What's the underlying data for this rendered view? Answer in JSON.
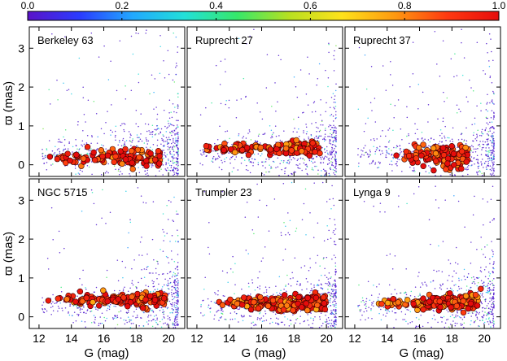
{
  "colors": {
    "colorbar_stops": [
      "#5a12c8",
      "#2a3cff",
      "#22a8ff",
      "#22e0d8",
      "#36e86a",
      "#b8e020",
      "#ffe21a",
      "#ff9a10",
      "#ff3a10",
      "#e60c0c"
    ],
    "background_star": "#4b14cc",
    "member_edge": "#3a0000",
    "frame": "#000000"
  },
  "chart_data": {
    "type": "scatter",
    "colorbar": {
      "label_values": [
        0.0,
        0.2,
        0.4,
        0.6,
        0.8,
        1.0
      ],
      "tick_labels": [
        "0.0",
        "0.2",
        "0.4",
        "0.6",
        "0.8",
        "1.0"
      ],
      "range": [
        0,
        1
      ]
    },
    "xlabel": "G (mag)",
    "ylabel": "ϖ (mas)",
    "xlim": [
      11.4,
      21.0
    ],
    "ylim": [
      -0.3,
      3.55
    ],
    "xticks": [
      12,
      14,
      16,
      18,
      20
    ],
    "yticks": [
      0,
      1,
      2,
      3
    ],
    "xtick_labels": [
      "12",
      "14",
      "16",
      "18",
      "20"
    ],
    "ytick_labels": [
      "0",
      "1",
      "2",
      "3"
    ],
    "panels": [
      {
        "name": "Berkeley 63",
        "row": 0,
        "col": 0,
        "members": {
          "g_min": 12.4,
          "g_max": 19.5,
          "parallax": 0.18,
          "spread": 0.08,
          "count": 110,
          "mean_prob": 0.9
        }
      },
      {
        "name": "Ruprecht 27",
        "row": 0,
        "col": 1,
        "members": {
          "g_min": 12.5,
          "g_max": 19.6,
          "parallax": 0.42,
          "spread": 0.06,
          "count": 140,
          "mean_prob": 0.88
        }
      },
      {
        "name": "Ruprecht 37",
        "row": 0,
        "col": 2,
        "members": {
          "g_min": 14.5,
          "g_max": 19.0,
          "parallax": 0.22,
          "spread": 0.14,
          "count": 120,
          "mean_prob": 0.9
        }
      },
      {
        "name": "NGC 5715",
        "row": 1,
        "col": 0,
        "members": {
          "g_min": 12.4,
          "g_max": 19.8,
          "parallax": 0.44,
          "spread": 0.06,
          "count": 150,
          "mean_prob": 0.88
        }
      },
      {
        "name": "Trumpler 23",
        "row": 1,
        "col": 1,
        "members": {
          "g_min": 13.0,
          "g_max": 20.0,
          "parallax": 0.34,
          "spread": 0.07,
          "count": 190,
          "mean_prob": 0.87
        }
      },
      {
        "name": "Lynga 9",
        "row": 1,
        "col": 2,
        "members": {
          "g_min": 13.3,
          "g_max": 19.8,
          "parallax": 0.35,
          "spread": 0.07,
          "count": 190,
          "mean_prob": 0.87
        }
      }
    ]
  }
}
